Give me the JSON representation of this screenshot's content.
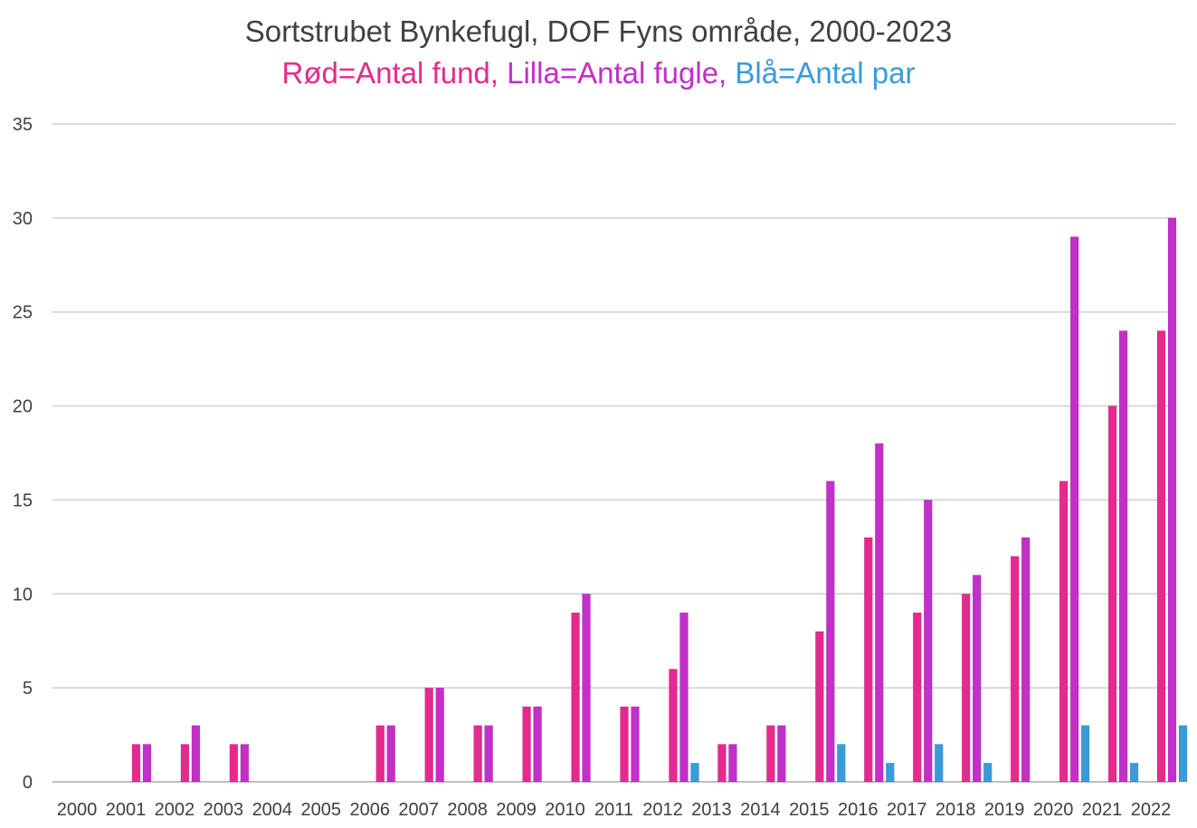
{
  "chart_data": {
    "type": "bar",
    "title": "Sortstrubet Bynkefugl, DOF Fyns område, 2000-2023",
    "subtitle_parts": [
      {
        "text": "Rød=Antal fund, ",
        "color": "#e6298f"
      },
      {
        "text": "Lilla=Antal fugle, ",
        "color": "#c42ec9"
      },
      {
        "text": "Blå=Antal par",
        "color": "#3a9bd9"
      }
    ],
    "categories": [
      "2000",
      "2001",
      "2002",
      "2003",
      "2004",
      "2005",
      "2006",
      "2007",
      "2008",
      "2009",
      "2010",
      "2011",
      "2012",
      "2013",
      "2014",
      "2015",
      "2016",
      "2017",
      "2018",
      "2019",
      "2020",
      "2021",
      "2022"
    ],
    "series": [
      {
        "color": "#e6298f",
        "values": [
          0,
          2,
          2,
          2,
          0,
          0,
          3,
          5,
          3,
          4,
          9,
          4,
          6,
          2,
          3,
          8,
          13,
          9,
          10,
          12,
          16,
          20,
          24
        ]
      },
      {
        "color": "#c42ec9",
        "values": [
          0,
          2,
          3,
          2,
          0,
          0,
          3,
          5,
          3,
          4,
          10,
          4,
          9,
          2,
          3,
          16,
          18,
          15,
          11,
          13,
          29,
          24,
          30
        ]
      },
      {
        "color": "#3a9bd9",
        "values": [
          0,
          0,
          0,
          0,
          0,
          0,
          0,
          0,
          0,
          0,
          0,
          0,
          1,
          0,
          0,
          2,
          1,
          2,
          1,
          0,
          3,
          1,
          3
        ]
      }
    ],
    "yticks": [
      0,
      5,
      10,
      15,
      20,
      25,
      30,
      35
    ],
    "ylim": [
      0,
      35
    ],
    "grid": true,
    "legend": "none"
  }
}
